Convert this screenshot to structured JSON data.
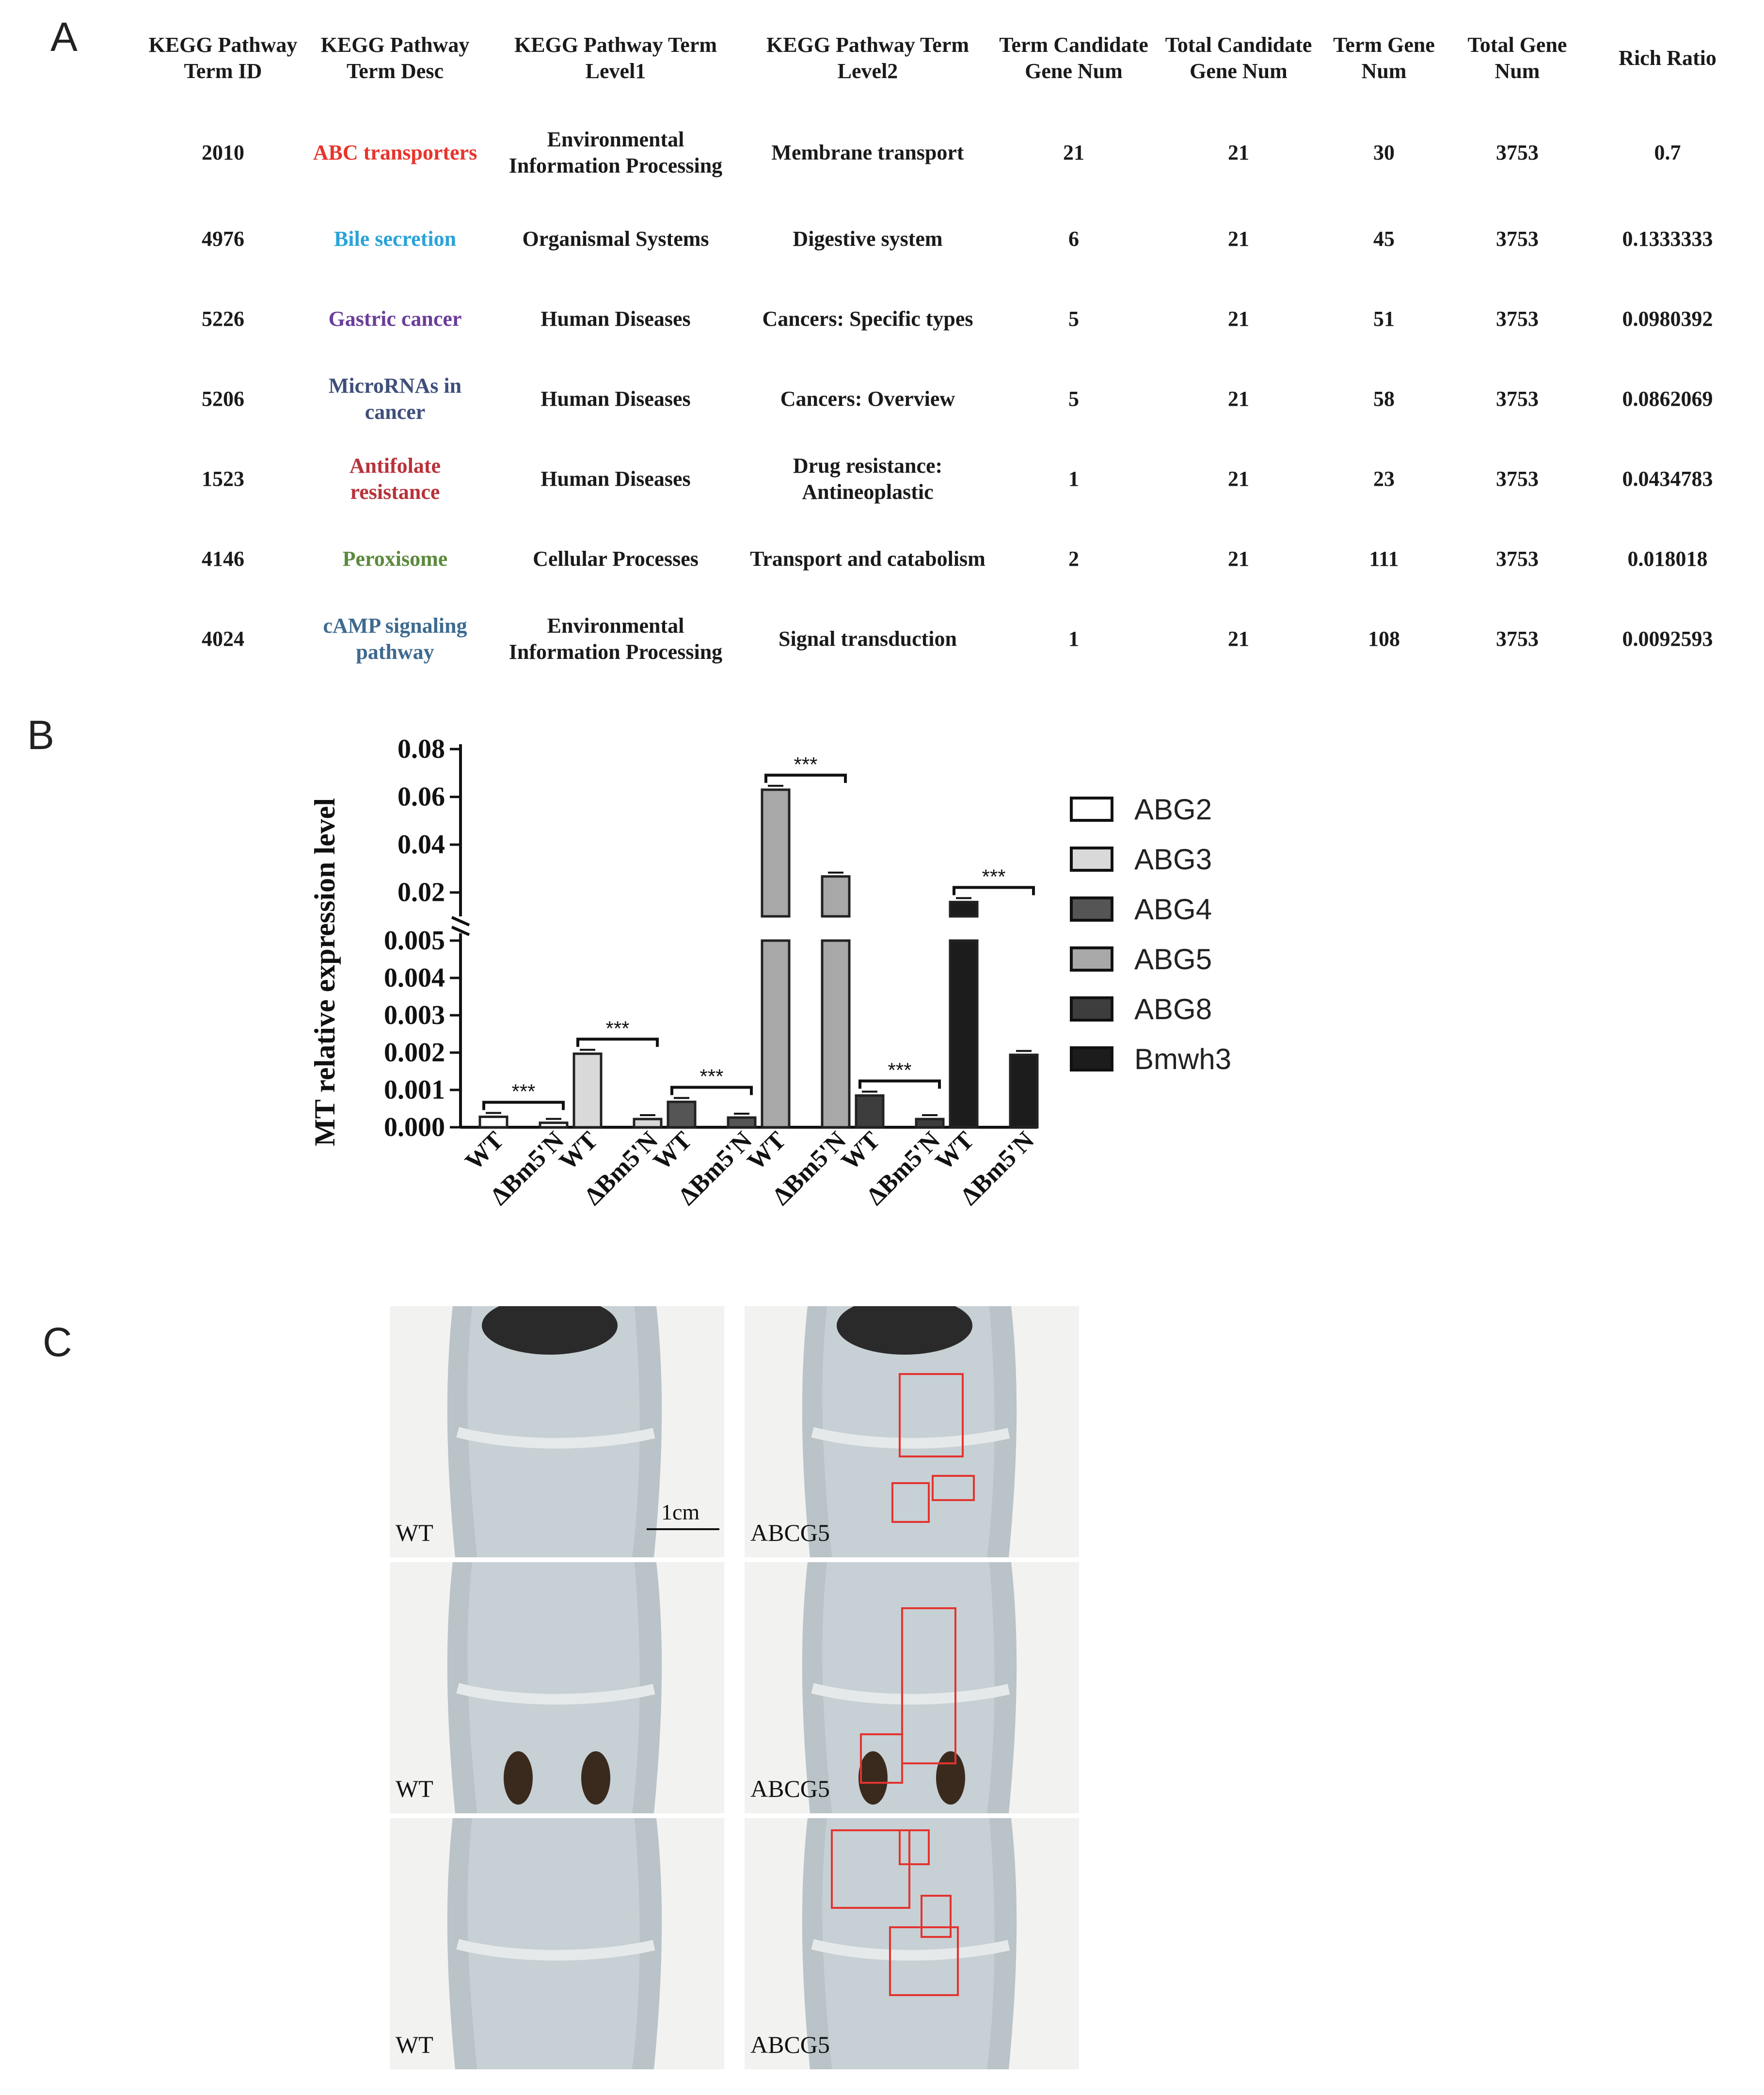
{
  "panels": {
    "a": "A",
    "b": "B",
    "c": "C"
  },
  "table": {
    "headers": [
      "KEGG Pathway Term ID",
      "KEGG Pathway Term Desc",
      "KEGG Pathway Term Level1",
      "KEGG Pathway Term Level2",
      "Term Candidate Gene Num",
      "Total Candidate Gene Num",
      "Term Gene Num",
      "Total Gene Num",
      "Rich Ratio"
    ],
    "rows": [
      {
        "id": "2010",
        "desc": "ABC transporters",
        "desc_color": "#e8342b",
        "level1": "Environmental Information Processing",
        "level2": "Membrane transport",
        "term_candidate": "21",
        "total_candidate": "21",
        "term_gene": "30",
        "total_gene": "3753",
        "rich_ratio": "0.7"
      },
      {
        "id": "4976",
        "desc": "Bile secretion",
        "desc_color": "#2aa3d8",
        "level1": "Organismal Systems",
        "level2": "Digestive system",
        "term_candidate": "6",
        "total_candidate": "21",
        "term_gene": "45",
        "total_gene": "3753",
        "rich_ratio": "0.1333333"
      },
      {
        "id": "5226",
        "desc": "Gastric cancer",
        "desc_color": "#6a3d9a",
        "level1": "Human Diseases",
        "level2": "Cancers: Specific types",
        "term_candidate": "5",
        "total_candidate": "21",
        "term_gene": "51",
        "total_gene": "3753",
        "rich_ratio": "0.0980392"
      },
      {
        "id": "5206",
        "desc": "MicroRNAs in cancer",
        "desc_color": "#3f4f7a",
        "level1": "Human Diseases",
        "level2": "Cancers: Overview",
        "term_candidate": "5",
        "total_candidate": "21",
        "term_gene": "58",
        "total_gene": "3753",
        "rich_ratio": "0.0862069"
      },
      {
        "id": "1523",
        "desc": "Antifolate resistance",
        "desc_color": "#b8323a",
        "level1": "Human Diseases",
        "level2": "Drug resistance: Antineoplastic",
        "term_candidate": "1",
        "total_candidate": "21",
        "term_gene": "23",
        "total_gene": "3753",
        "rich_ratio": "0.0434783"
      },
      {
        "id": "4146",
        "desc": "Peroxisome",
        "desc_color": "#5b8a3c",
        "level1": "Cellular Processes",
        "level2": "Transport and catabolism",
        "term_candidate": "2",
        "total_candidate": "21",
        "term_gene": "111",
        "total_gene": "3753",
        "rich_ratio": "0.018018"
      },
      {
        "id": "4024",
        "desc": "cAMP signaling pathway",
        "desc_color": "#3e6a8f",
        "level1": "Environmental Information Processing",
        "level2": "Signal transduction",
        "term_candidate": "1",
        "total_candidate": "21",
        "term_gene": "108",
        "total_gene": "3753",
        "rich_ratio": "0.0092593"
      }
    ]
  },
  "chart_data": {
    "type": "bar",
    "ylabel": "MT relative expression level",
    "y_axis": "broken",
    "ylim_lower": [
      0,
      0.005
    ],
    "ylim_upper": [
      0.01,
      0.08
    ],
    "yticks_lower": [
      "0.000",
      "0.001",
      "0.002",
      "0.003",
      "0.004",
      "0.005"
    ],
    "yticks_upper": [
      "0.02",
      "0.04",
      "0.06",
      "0.08"
    ],
    "categories": [
      "WT",
      "ΔBm5'N"
    ],
    "series": [
      {
        "name": "ABG2",
        "color": "#ffffff",
        "values": [
          0.00028,
          0.00012
        ]
      },
      {
        "name": "ABG3",
        "color": "#d9d9d9",
        "values": [
          0.00197,
          0.00022
        ]
      },
      {
        "name": "ABG4",
        "color": "#555555",
        "values": [
          0.00068,
          0.00026
        ]
      },
      {
        "name": "ABG5",
        "color": "#a8a8a8",
        "values": [
          0.063,
          0.0267
        ]
      },
      {
        "name": "ABG8",
        "color": "#3d3d3d",
        "values": [
          0.00085,
          0.00022
        ]
      },
      {
        "name": "Bmwh3",
        "color": "#1c1c1c",
        "values": [
          0.016,
          0.00194
        ]
      }
    ],
    "significance": [
      "***",
      "***",
      "***",
      "***",
      "***",
      "***"
    ],
    "legend_position": "right"
  },
  "photos": {
    "labels": [
      "WT",
      "ABCG5",
      "WT",
      "ABCG5",
      "WT",
      "ABCG5"
    ],
    "scale_bar": "1cm"
  }
}
